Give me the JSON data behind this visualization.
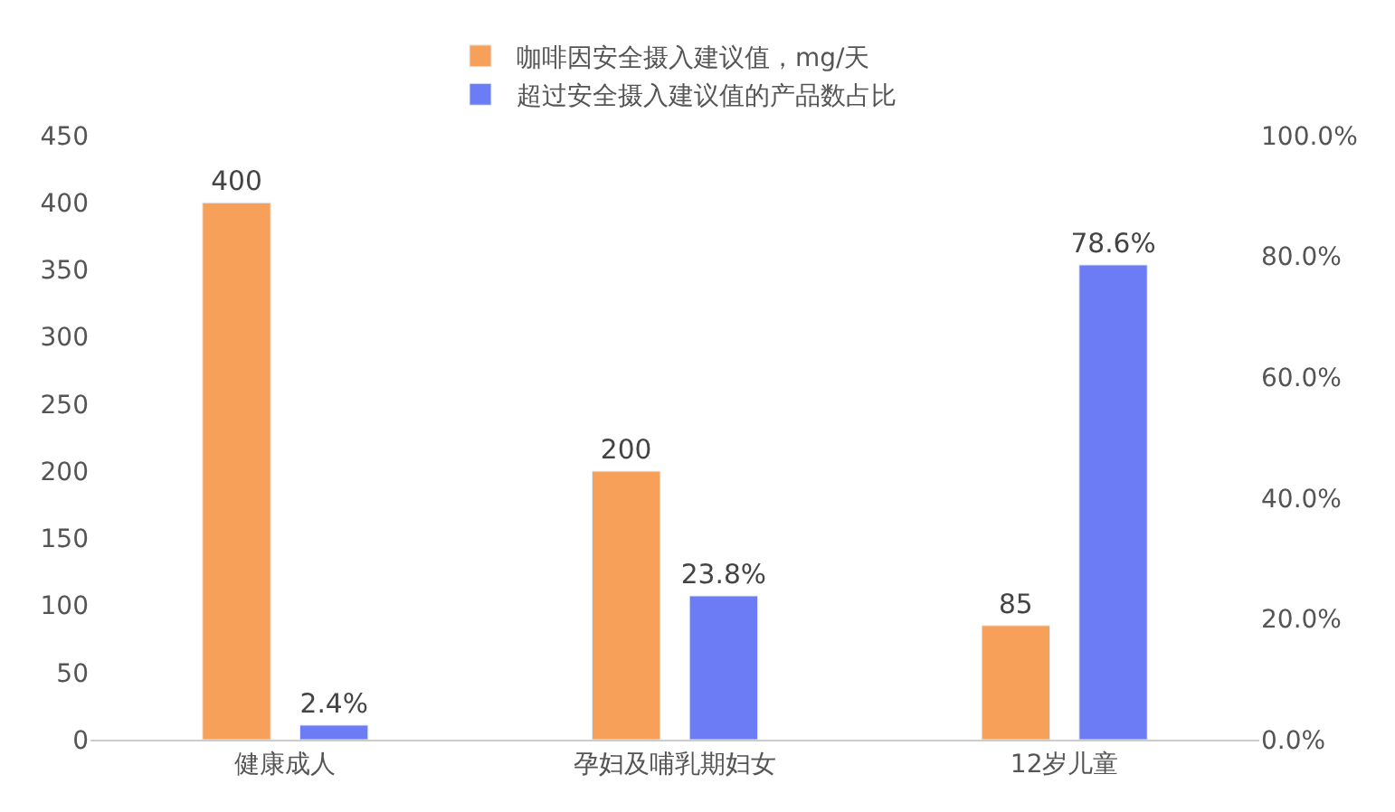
{
  "chart_data": {
    "type": "bar",
    "categories": [
      "健康成人",
      "孕妇及哺乳期妇女",
      "12岁儿童"
    ],
    "series": [
      {
        "name": "咖啡因安全摄入建议值，mg/天",
        "color": "#f6a05a",
        "values": [
          400,
          200,
          85
        ],
        "value_labels": [
          "400",
          "200",
          "85"
        ]
      },
      {
        "name": "超过安全摄入建议值的产品数占比",
        "color": "#6b7cf5",
        "values": [
          2.4,
          23.8,
          78.6
        ],
        "axis": "y2",
        "value_labels": [
          "2.4%",
          "23.8%",
          "78.6%"
        ]
      }
    ],
    "ylim": [
      0,
      450
    ],
    "yticks": [
      0,
      50,
      100,
      150,
      200,
      250,
      300,
      350,
      400,
      450
    ],
    "y2lim": [
      0,
      100
    ],
    "y2ticks": [
      {
        "value": 0,
        "label": "0.0%"
      },
      {
        "value": 20,
        "label": "20.0%"
      },
      {
        "value": 40,
        "label": "40.0%"
      },
      {
        "value": 60,
        "label": "60.0%"
      },
      {
        "value": 80,
        "label": "80.0%"
      },
      {
        "value": 100,
        "label": "100.0%"
      }
    ],
    "legend": "top"
  }
}
